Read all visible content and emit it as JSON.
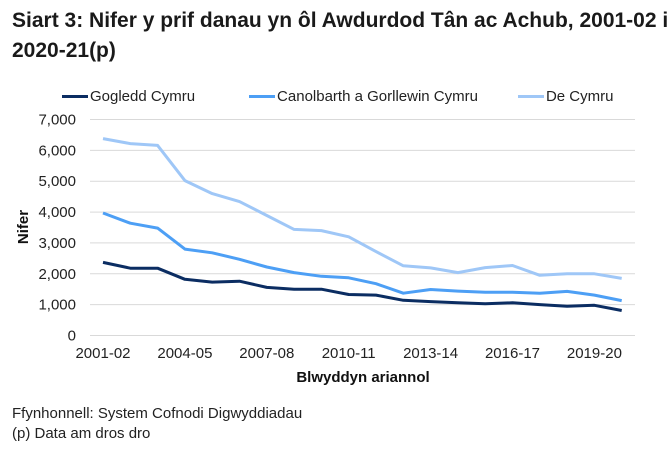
{
  "title": "Siart 3: Nifer y prif danau yn ôl Awdurdod Tân ac Achub, 2001-02 i 2020-21(p)",
  "footer": {
    "source": "Ffynhonnell: System Cofnodi Digwyddiadau",
    "note": "(p) Data am dros dro"
  },
  "legend": [
    {
      "label": "Gogledd Cymru",
      "color": "#0b2d62"
    },
    {
      "label": "Canolbarth a Gorllewin Cymru",
      "color": "#4d9ff5"
    },
    {
      "label": "De Cymru",
      "color": "#9fc7f7"
    }
  ],
  "chart_data": {
    "type": "line",
    "title": "Siart 3: Nifer y prif danau yn ôl Awdurdod Tân ac Achub, 2001-02 i 2020-21(p)",
    "xlabel": "Blwyddyn ariannol",
    "ylabel": "Nifer",
    "ylim": [
      0,
      7000
    ],
    "yticks": [
      "0",
      "1,000",
      "2,000",
      "3,000",
      "4,000",
      "5,000",
      "6,000",
      "7,000"
    ],
    "xtick_labels": [
      "2001-02",
      "2004-05",
      "2007-08",
      "2010-11",
      "2013-14",
      "2016-17",
      "2019-20"
    ],
    "grid": "horizontal",
    "legend_position": "top",
    "categories": [
      "2001-02",
      "2002-03",
      "2003-04",
      "2004-05",
      "2005-06",
      "2006-07",
      "2007-08",
      "2008-09",
      "2009-10",
      "2010-11",
      "2011-12",
      "2012-13",
      "2013-14",
      "2014-15",
      "2015-16",
      "2016-17",
      "2017-18",
      "2018-19",
      "2019-20",
      "2020-21"
    ],
    "series": [
      {
        "name": "Gogledd Cymru",
        "color": "#0b2d62",
        "values": [
          2370,
          2180,
          2180,
          1820,
          1730,
          1760,
          1560,
          1500,
          1500,
          1330,
          1310,
          1140,
          1100,
          1060,
          1030,
          1060,
          1000,
          950,
          980,
          810
        ]
      },
      {
        "name": "Canolbarth a Gorllewin Cymru",
        "color": "#4d9ff5",
        "values": [
          3970,
          3640,
          3480,
          2800,
          2680,
          2470,
          2220,
          2040,
          1920,
          1870,
          1680,
          1370,
          1490,
          1440,
          1400,
          1400,
          1370,
          1430,
          1310,
          1130
        ]
      },
      {
        "name": "De Cymru",
        "color": "#9fc7f7",
        "values": [
          6380,
          6220,
          6160,
          5020,
          4600,
          4340,
          3890,
          3440,
          3400,
          3200,
          2720,
          2260,
          2190,
          2040,
          2200,
          2270,
          1950,
          2000,
          2000,
          1850
        ]
      }
    ]
  }
}
